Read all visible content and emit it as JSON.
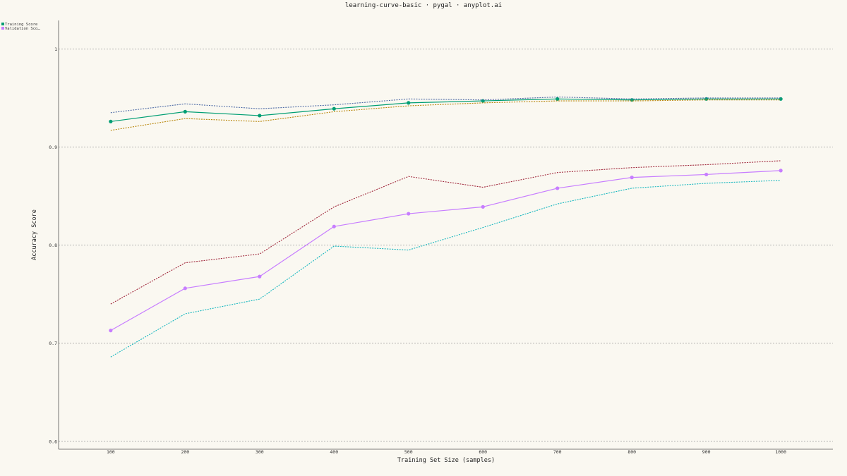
{
  "page": {
    "background": "#FAF8F1"
  },
  "chart_data": {
    "type": "line",
    "title": "learning-curve-basic · pygal · anyplot.ai",
    "xlabel": "Training Set Size (samples)",
    "ylabel": "Accuracy Score",
    "x": [
      100,
      200,
      300,
      400,
      500,
      600,
      700,
      800,
      900,
      1000
    ],
    "x_tick_labels": [
      "100",
      "200",
      "300",
      "400",
      "500",
      "600",
      "700",
      "800",
      "900",
      "1000"
    ],
    "y_ticks": [
      0.6,
      0.7,
      0.8,
      0.9,
      1
    ],
    "y_tick_labels": [
      "0.6",
      "0.7",
      "0.8",
      "0.9",
      "1"
    ],
    "ylim": [
      0.592,
      1.029
    ],
    "xlim": [
      30,
      1070
    ],
    "grid": true,
    "legend_position": "top-left",
    "legend": [
      {
        "label": "Training Score",
        "color": "#009E73"
      },
      {
        "label": "Validation Sco…",
        "color": "#C77DFF"
      }
    ],
    "series": [
      {
        "name": "Training Score",
        "color": "#009E73",
        "style": "solid",
        "markers": true,
        "values": [
          0.926,
          0.936,
          0.932,
          0.939,
          0.945,
          0.947,
          0.949,
          0.948,
          0.949,
          0.949
        ]
      },
      {
        "color": "#4E6BA6",
        "style": "dotted",
        "markers": false,
        "values": [
          0.935,
          0.944,
          0.939,
          0.943,
          0.949,
          0.948,
          0.951,
          0.949,
          0.95,
          0.95
        ]
      },
      {
        "color": "#B8860B",
        "style": "dotted",
        "markers": false,
        "values": [
          0.917,
          0.929,
          0.926,
          0.936,
          0.942,
          0.945,
          0.947,
          0.947,
          0.948,
          0.948
        ]
      },
      {
        "name": "Validation Sco…",
        "color": "#C77DFF",
        "style": "solid",
        "markers": true,
        "values": [
          0.713,
          0.756,
          0.768,
          0.819,
          0.832,
          0.839,
          0.858,
          0.869,
          0.872,
          0.876
        ]
      },
      {
        "color": "#A0283C",
        "style": "dotted",
        "markers": false,
        "values": [
          0.74,
          0.782,
          0.791,
          0.839,
          0.87,
          0.859,
          0.874,
          0.879,
          0.882,
          0.886
        ]
      },
      {
        "color": "#17B7BF",
        "style": "dotted",
        "markers": false,
        "values": [
          0.686,
          0.73,
          0.745,
          0.799,
          0.795,
          0.818,
          0.842,
          0.858,
          0.863,
          0.866
        ]
      }
    ]
  }
}
